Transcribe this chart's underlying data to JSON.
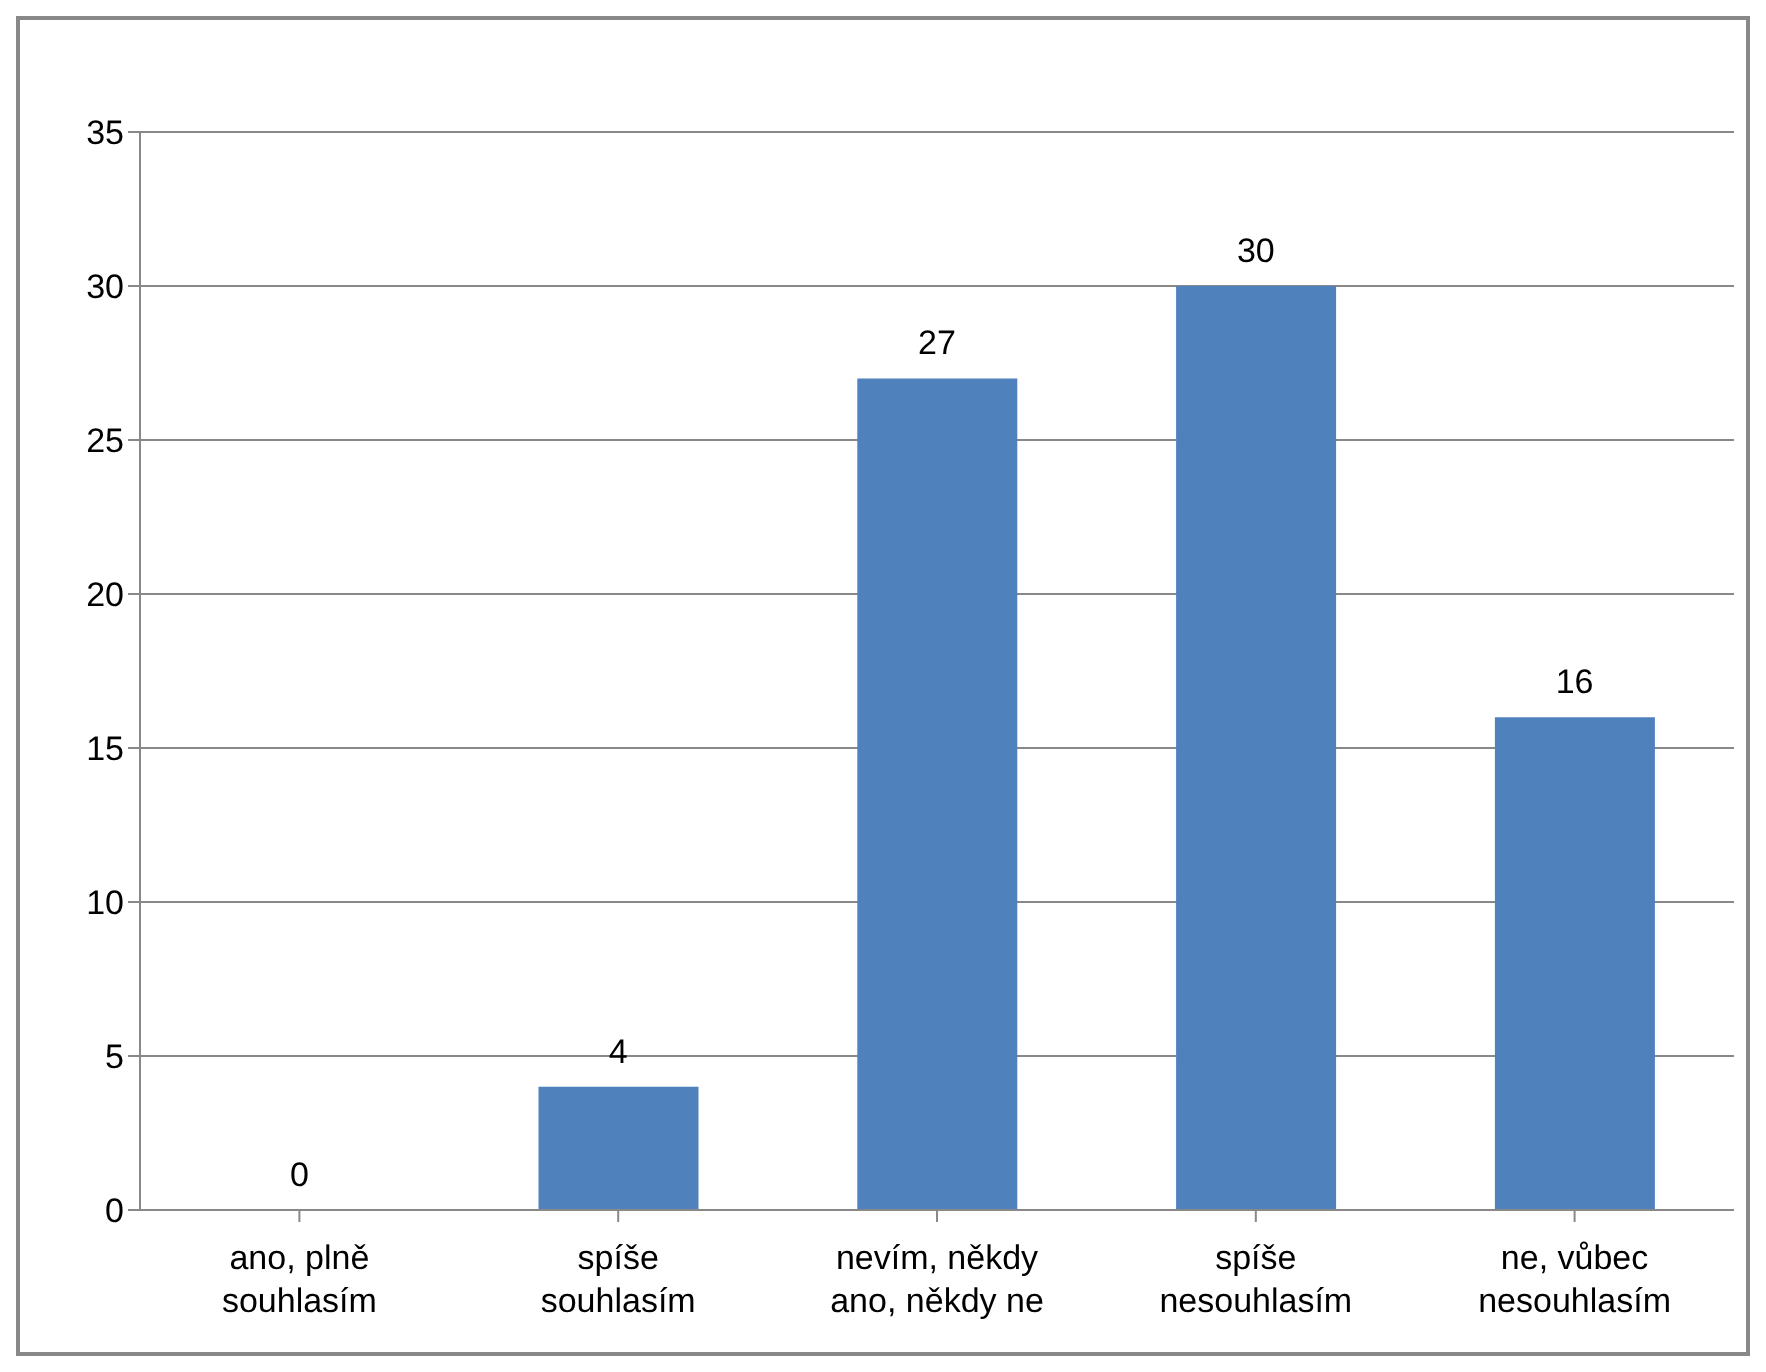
{
  "chart_data": {
    "type": "bar",
    "categories": [
      "ano, plně souhlasím",
      "spíše souhlasím",
      "nevím, někdy ano, někdy ne",
      "spíše nesouhlasím",
      "ne, vůbec nesouhlasím"
    ],
    "values": [
      0,
      4,
      27,
      30,
      16
    ],
    "color": "#4f81bd",
    "ylim": [
      0,
      35
    ],
    "yticks": [
      0,
      5,
      10,
      15,
      20,
      25,
      30,
      35
    ],
    "grid": "y",
    "data_labels": true,
    "legend": false
  }
}
